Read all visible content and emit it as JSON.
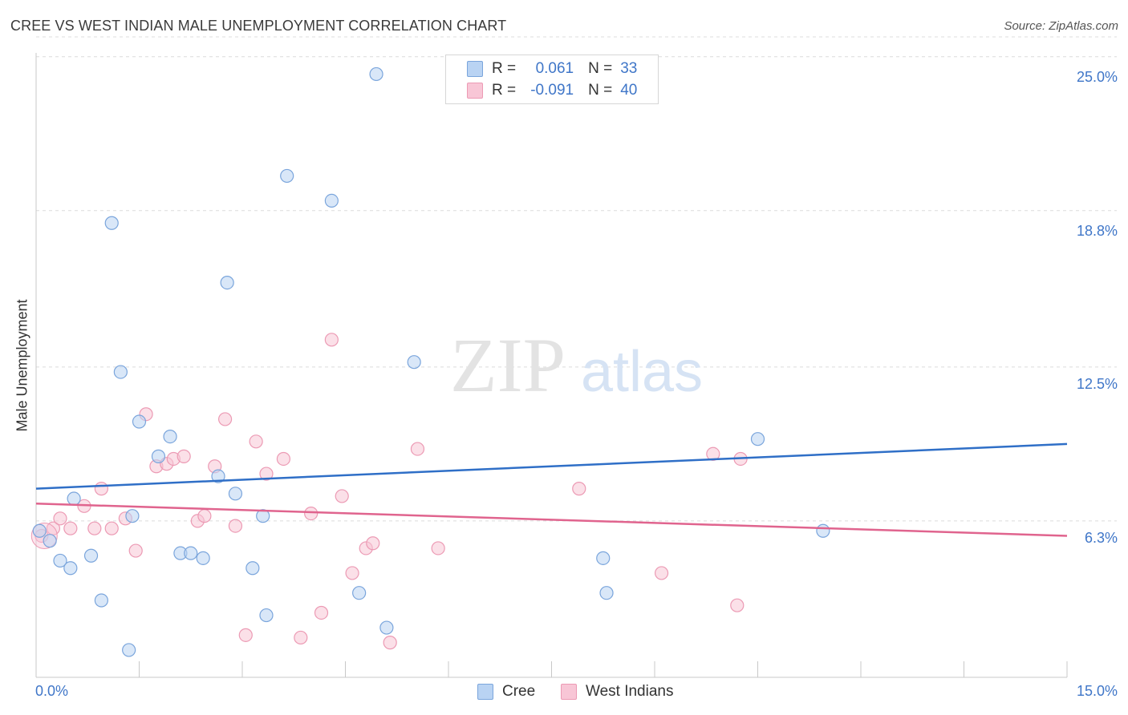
{
  "title": "CREE VS WEST INDIAN MALE UNEMPLOYMENT CORRELATION CHART",
  "source": "Source: ZipAtlas.com",
  "watermark": {
    "zip": "ZIP",
    "atlas": "atlas"
  },
  "legend": {
    "cree": {
      "r_label": "R =",
      "r_value": "0.061",
      "n_label": "N =",
      "n_value": "33"
    },
    "west": {
      "r_label": "R =",
      "r_value": "-0.091",
      "n_label": "N =",
      "n_value": "40"
    }
  },
  "colors": {
    "cree_fill": "#b9d3f3",
    "cree_stroke": "#7aa5dc",
    "cree_line": "#2f6fc7",
    "west_fill": "#f8c6d6",
    "west_stroke": "#ec9ab4",
    "west_line": "#e0648e",
    "axis_text": "#3f76c8",
    "grid": "#dcdcdc"
  },
  "chart_data": {
    "type": "scatter",
    "title": "CREE VS WEST INDIAN MALE UNEMPLOYMENT CORRELATION CHART",
    "xlabel": "",
    "ylabel": "Male Unemployment",
    "xlim": [
      0,
      15
    ],
    "ylim": [
      0,
      25.8
    ],
    "x_tick_labels": [
      "0.0%",
      "15.0%"
    ],
    "y_ticks": [
      6.3,
      12.5,
      18.8,
      25.0
    ],
    "y_tick_labels": [
      "6.3%",
      "12.5%",
      "18.8%",
      "25.0%"
    ],
    "grid": "horizontal dashed",
    "legend_position": "top-center",
    "series": [
      {
        "name": "Cree",
        "r": 0.061,
        "n": 33,
        "trend": [
          [
            0,
            7.6
          ],
          [
            15,
            9.4
          ]
        ],
        "points": [
          [
            0.05,
            5.9
          ],
          [
            0.2,
            5.5
          ],
          [
            0.35,
            4.7
          ],
          [
            0.5,
            4.4
          ],
          [
            0.8,
            4.9
          ],
          [
            0.95,
            3.1
          ],
          [
            1.1,
            18.3
          ],
          [
            1.23,
            12.3
          ],
          [
            1.35,
            1.1
          ],
          [
            1.5,
            10.3
          ],
          [
            1.78,
            8.9
          ],
          [
            1.95,
            9.7
          ],
          [
            2.1,
            5.0
          ],
          [
            2.25,
            5.0
          ],
          [
            2.43,
            4.8
          ],
          [
            2.65,
            8.1
          ],
          [
            2.78,
            15.9
          ],
          [
            2.9,
            7.4
          ],
          [
            3.15,
            4.4
          ],
          [
            3.3,
            6.5
          ],
          [
            3.35,
            2.5
          ],
          [
            3.65,
            20.2
          ],
          [
            4.3,
            19.2
          ],
          [
            4.7,
            3.4
          ],
          [
            4.95,
            24.3
          ],
          [
            5.1,
            2.0
          ],
          [
            5.5,
            12.7
          ],
          [
            8.25,
            4.8
          ],
          [
            8.3,
            3.4
          ],
          [
            10.5,
            9.6
          ],
          [
            11.45,
            5.9
          ],
          [
            1.4,
            6.5
          ],
          [
            0.55,
            7.2
          ]
        ]
      },
      {
        "name": "West Indians",
        "r": -0.091,
        "n": 40,
        "trend": [
          [
            0,
            7.0
          ],
          [
            15,
            5.7
          ]
        ],
        "points": [
          [
            0.08,
            5.7
          ],
          [
            0.25,
            6.0
          ],
          [
            0.35,
            6.4
          ],
          [
            0.5,
            6.0
          ],
          [
            0.7,
            6.9
          ],
          [
            0.85,
            6.0
          ],
          [
            0.95,
            7.6
          ],
          [
            1.1,
            6.0
          ],
          [
            1.3,
            6.4
          ],
          [
            1.45,
            5.1
          ],
          [
            1.6,
            10.6
          ],
          [
            1.75,
            8.5
          ],
          [
            1.9,
            8.6
          ],
          [
            2.0,
            8.8
          ],
          [
            2.15,
            8.9
          ],
          [
            2.35,
            6.3
          ],
          [
            2.45,
            6.5
          ],
          [
            2.6,
            8.5
          ],
          [
            2.75,
            10.4
          ],
          [
            2.9,
            6.1
          ],
          [
            3.05,
            1.7
          ],
          [
            3.2,
            9.5
          ],
          [
            3.35,
            8.2
          ],
          [
            3.6,
            8.8
          ],
          [
            3.85,
            1.6
          ],
          [
            4.0,
            6.6
          ],
          [
            4.15,
            2.6
          ],
          [
            4.3,
            13.6
          ],
          [
            4.45,
            7.3
          ],
          [
            4.6,
            4.2
          ],
          [
            4.8,
            5.2
          ],
          [
            4.9,
            5.4
          ],
          [
            5.15,
            1.4
          ],
          [
            5.55,
            9.2
          ],
          [
            5.85,
            5.2
          ],
          [
            7.9,
            7.6
          ],
          [
            9.1,
            4.2
          ],
          [
            9.85,
            9.0
          ],
          [
            10.2,
            2.9
          ],
          [
            10.25,
            8.8
          ]
        ]
      }
    ]
  },
  "bottom_legend": {
    "cree": "Cree",
    "west": "West Indians"
  }
}
